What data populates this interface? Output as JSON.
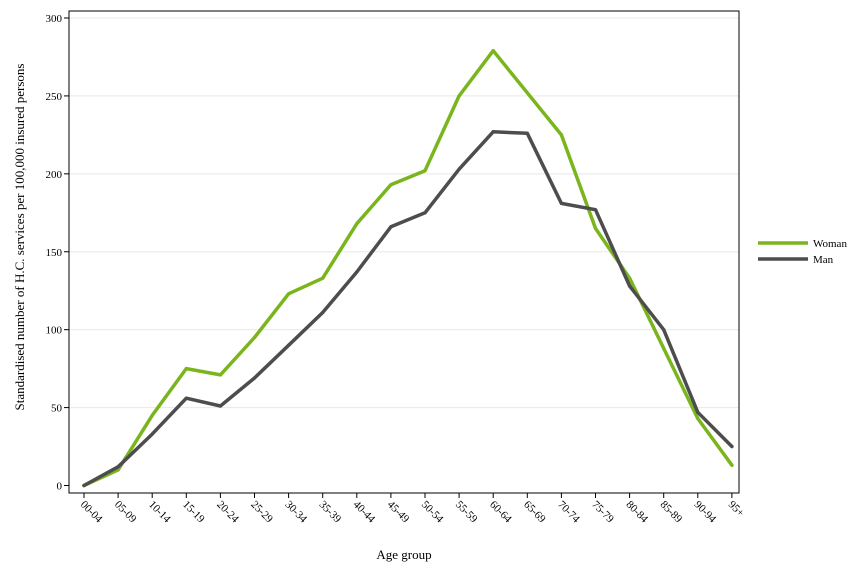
{
  "chart_data": {
    "type": "line",
    "title": "",
    "xlabel": "Age group",
    "ylabel": "Standardised number of H.C. services per 100,000 insured persons",
    "categories": [
      "00-04",
      "05-09",
      "10-14",
      "15-19",
      "20-24",
      "25-29",
      "30-34",
      "35-39",
      "40-44",
      "45-49",
      "50-54",
      "55-59",
      "60-64",
      "65-69",
      "70-74",
      "75-79",
      "80-84",
      "85-89",
      "90-94",
      "95+"
    ],
    "ylim": [
      0,
      300
    ],
    "yticks": [
      0,
      50,
      100,
      150,
      200,
      250,
      300
    ],
    "grid": true,
    "legend_position": "right",
    "series": [
      {
        "name": "Woman",
        "color": "#7ab51d",
        "values": [
          0,
          10,
          45,
          75,
          71,
          95,
          123,
          133,
          168,
          193,
          202,
          250,
          279,
          252,
          225,
          165,
          133,
          88,
          43,
          13
        ]
      },
      {
        "name": "Man",
        "color": "#4d4d4d",
        "values": [
          0,
          12,
          33,
          56,
          51,
          69,
          90,
          111,
          137,
          166,
          175,
          203,
          227,
          226,
          181,
          177,
          128,
          100,
          47,
          25
        ]
      }
    ]
  }
}
